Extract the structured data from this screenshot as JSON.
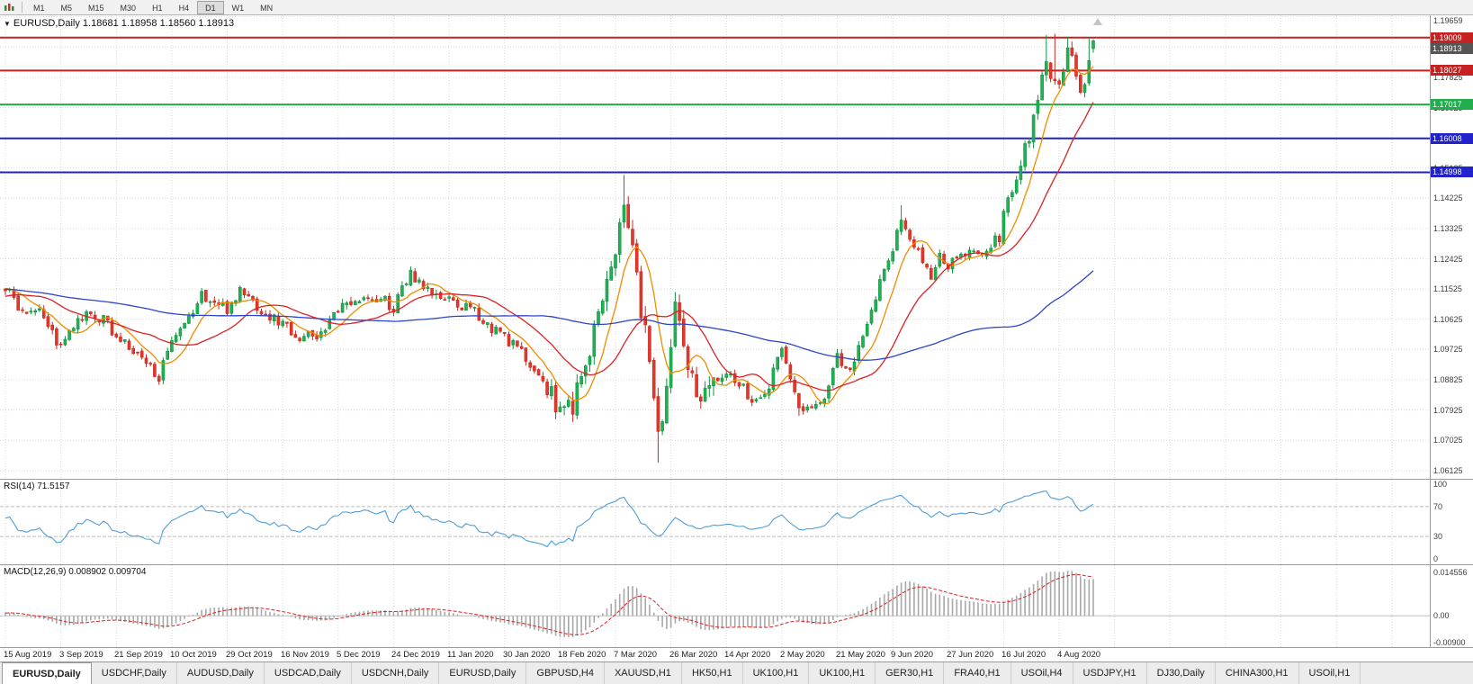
{
  "toolbar": {
    "timeframes": [
      "M1",
      "M5",
      "M15",
      "M30",
      "H1",
      "H4",
      "D1",
      "W1",
      "MN"
    ],
    "active_timeframe": "D1"
  },
  "chart": {
    "header_text": "EURUSD,Daily 1.18681 1.18958 1.18560 1.18913",
    "dropdown_glyph": "▼"
  },
  "price_axis": {
    "top_label": "1.19659",
    "gridlines": [
      "1.18725",
      "1.17825",
      "1.16925",
      "1.16025",
      "1.15125",
      "1.14225",
      "1.13325",
      "1.12425",
      "1.11525",
      "1.10625",
      "1.09725",
      "1.08825",
      "1.07925",
      "1.07025",
      "1.06125"
    ],
    "badges": [
      {
        "value": "1.19009",
        "price": 1.19009,
        "color": "#c62120"
      },
      {
        "value": "1.18913",
        "price": 1.18913,
        "color": "#555555"
      },
      {
        "value": "1.18027",
        "price": 1.18027,
        "color": "#c62120"
      },
      {
        "value": "1.17017",
        "price": 1.17017,
        "color": "#1fae4b"
      },
      {
        "value": "1.16008",
        "price": 1.16008,
        "color": "#2222cc"
      },
      {
        "value": "1.14998",
        "price": 1.14998,
        "color": "#2222cc"
      }
    ]
  },
  "levels": [
    {
      "price": 1.19009,
      "color": "#c62120",
      "width": 2
    },
    {
      "price": 1.18027,
      "color": "#c62120",
      "width": 2
    },
    {
      "price": 1.17017,
      "color": "#1fae4b",
      "width": 2
    },
    {
      "price": 1.16008,
      "color": "#2222cc",
      "width": 2
    },
    {
      "price": 1.14998,
      "color": "#2222cc",
      "width": 2
    }
  ],
  "rsi": {
    "label": "RSI(14) 71.5157",
    "period": 14,
    "current": 71.5157,
    "axis_labels": [
      {
        "text": "100",
        "value": 100
      },
      {
        "text": "70",
        "value": 70
      },
      {
        "text": "30",
        "value": 30
      },
      {
        "text": "0",
        "value": 0
      }
    ],
    "level_lines": [
      70,
      30
    ],
    "line_color": "#4f9fd8"
  },
  "macd": {
    "label": "MACD(12,26,9) 0.008902 0.009704",
    "values": [
      0.008902,
      0.009704
    ],
    "axis_labels": [
      {
        "text": "0.014556",
        "value": 0.014556
      },
      {
        "text": "0.00",
        "value": 0
      },
      {
        "text": "-0.00900",
        "value": -0.009
      }
    ],
    "range": {
      "max": 0.014556,
      "min": -0.009
    },
    "histogram_color": "#a8a8a8",
    "signal_color": "#e02020"
  },
  "x_axis": {
    "dates": [
      "15 Aug 2019",
      "3 Sep 2019",
      "21 Sep 2019",
      "10 Oct 2019",
      "29 Oct 2019",
      "16 Nov 2019",
      "5 Dec 2019",
      "24 Dec 2019",
      "11 Jan 2020",
      "30 Jan 2020",
      "18 Feb 2020",
      "7 Mar 2020",
      "26 Mar 2020",
      "14 Apr 2020",
      "2 May 2020",
      "21 May 2020",
      "9 Jun 2020",
      "27 Jun 2020",
      "16 Jul 2020",
      "4 Aug 2020"
    ],
    "candles_per_tick": 13
  },
  "tabs": [
    "EURUSD,Daily",
    "USDCHF,Daily",
    "AUDUSD,Daily",
    "USDCAD,Daily",
    "USDCNH,Daily",
    "EURUSD,Daily",
    "GBPUSD,H4",
    "XAUUSD,H1",
    "HK50,H1",
    "UK100,H1",
    "UK100,H1",
    "GER30,H1",
    "FRA40,H1",
    "USOil,H4",
    "USDJPY,H1",
    "DJ30,Daily",
    "CHINA300,H1",
    "USOil,H1"
  ],
  "active_tab_index": 0,
  "chart_data": {
    "type": "candlestick",
    "symbol": "EURUSD",
    "timeframe": "Daily",
    "current_ohlc": {
      "open": 1.18681,
      "high": 1.18958,
      "low": 1.1856,
      "close": 1.18913
    },
    "price_range": {
      "top": 1.1967,
      "bottom": 1.0588
    },
    "candle_count": 256,
    "seed": 9,
    "up_color": {
      "fill": "#1fb254",
      "stroke": "#12913f"
    },
    "down_color": {
      "fill": "#e3372c",
      "stroke": "#c6281e"
    },
    "prehistory_keypoints": [
      [
        -100,
        1.123
      ],
      [
        -70,
        1.12
      ],
      [
        -40,
        1.112
      ],
      [
        -20,
        1.108
      ],
      [
        -8,
        1.115
      ],
      [
        -1,
        1.116
      ]
    ],
    "close_keypoints": [
      [
        0,
        1.1155
      ],
      [
        4,
        1.109
      ],
      [
        8,
        1.1105
      ],
      [
        11,
        1.102
      ],
      [
        13,
        1.0975
      ],
      [
        16,
        1.104
      ],
      [
        19,
        1.107
      ],
      [
        23,
        1.106
      ],
      [
        26,
        1.1015
      ],
      [
        29,
        1.0975
      ],
      [
        33,
        1.093
      ],
      [
        36,
        1.0895
      ],
      [
        39,
        1.0985
      ],
      [
        43,
        1.106
      ],
      [
        46,
        1.1135
      ],
      [
        49,
        1.111
      ],
      [
        52,
        1.1095
      ],
      [
        55,
        1.115
      ],
      [
        58,
        1.1115
      ],
      [
        61,
        1.107
      ],
      [
        65,
        1.1055
      ],
      [
        69,
        1.101
      ],
      [
        73,
        1.1015
      ],
      [
        76,
        1.105
      ],
      [
        78,
        1.1085
      ],
      [
        82,
        1.113
      ],
      [
        86,
        1.1115
      ],
      [
        89,
        1.112
      ],
      [
        91,
        1.109
      ],
      [
        93,
        1.115
      ],
      [
        95,
        1.12
      ],
      [
        98,
        1.1165
      ],
      [
        101,
        1.113
      ],
      [
        104,
        1.1115
      ],
      [
        108,
        1.1095
      ],
      [
        111,
        1.1075
      ],
      [
        114,
        1.1035
      ],
      [
        117,
        1.101
      ],
      [
        120,
        1.0975
      ],
      [
        123,
        1.0935
      ],
      [
        126,
        1.087
      ],
      [
        129,
        1.08
      ],
      [
        131,
        1.079
      ],
      [
        133,
        1.0815
      ],
      [
        135,
        1.089
      ],
      [
        137,
        1.0965
      ],
      [
        138,
        1.103
      ],
      [
        140,
        1.11
      ],
      [
        142,
        1.12
      ],
      [
        144,
        1.136
      ],
      [
        145,
        1.144
      ],
      [
        146,
        1.135
      ],
      [
        147,
        1.127
      ],
      [
        148,
        1.118
      ],
      [
        149,
        1.1105
      ],
      [
        150,
        1.103
      ],
      [
        151,
        1.095
      ],
      [
        152,
        1.082
      ],
      [
        153,
        1.069
      ],
      [
        154,
        1.072
      ],
      [
        155,
        1.083
      ],
      [
        156,
        1.099
      ],
      [
        157,
        1.109
      ],
      [
        158,
        1.106
      ],
      [
        159,
        1.1
      ],
      [
        160,
        1.095
      ],
      [
        161,
        1.09
      ],
      [
        162,
        1.085
      ],
      [
        163,
        1.08
      ],
      [
        165,
        1.0855
      ],
      [
        167,
        1.088
      ],
      [
        169,
        1.091
      ],
      [
        171,
        1.088
      ],
      [
        173,
        1.0855
      ],
      [
        175,
        1.082
      ],
      [
        177,
        1.0835
      ],
      [
        179,
        1.087
      ],
      [
        181,
        1.095
      ],
      [
        182,
        1.0975
      ],
      [
        183,
        1.093
      ],
      [
        184,
        1.088
      ],
      [
        186,
        1.0795
      ],
      [
        188,
        1.0805
      ],
      [
        190,
        1.081
      ],
      [
        192,
        1.0815
      ],
      [
        194,
        1.0905
      ],
      [
        195,
        1.0945
      ],
      [
        197,
        1.0905
      ],
      [
        199,
        1.0945
      ],
      [
        201,
        1.1
      ],
      [
        203,
        1.11
      ],
      [
        205,
        1.117
      ],
      [
        207,
        1.1235
      ],
      [
        209,
        1.1325
      ],
      [
        210,
        1.137
      ],
      [
        212,
        1.13
      ],
      [
        214,
        1.1255
      ],
      [
        216,
        1.122
      ],
      [
        217,
        1.1195
      ],
      [
        219,
        1.1255
      ],
      [
        221,
        1.122
      ],
      [
        223,
        1.124
      ],
      [
        225,
        1.125
      ],
      [
        227,
        1.127
      ],
      [
        229,
        1.1255
      ],
      [
        231,
        1.129
      ],
      [
        233,
        1.13
      ],
      [
        234,
        1.1385
      ],
      [
        236,
        1.144
      ],
      [
        238,
        1.1525
      ],
      [
        240,
        1.16
      ],
      [
        242,
        1.172
      ],
      [
        244,
        1.1845
      ],
      [
        245,
        1.178
      ],
      [
        247,
        1.1765
      ],
      [
        249,
        1.1865
      ],
      [
        251,
        1.1795
      ],
      [
        252,
        1.1745
      ],
      [
        254,
        1.1815
      ],
      [
        255,
        1.18913
      ]
    ],
    "spike_highs": [
      [
        145,
        1.1492
      ],
      [
        210,
        1.1402
      ],
      [
        244,
        1.1908
      ],
      [
        246,
        1.1912
      ],
      [
        249,
        1.1903
      ],
      [
        254,
        1.19
      ]
    ],
    "spike_lows": [
      [
        131,
        1.0777
      ],
      [
        153,
        1.0636
      ],
      [
        186,
        1.0775
      ]
    ],
    "volatility_zones": [
      {
        "from": -100,
        "to": 127,
        "amp": 0.0017
      },
      {
        "from": 128,
        "to": 166,
        "amp": 0.004
      },
      {
        "from": 167,
        "to": 235,
        "amp": 0.0017
      },
      {
        "from": 236,
        "to": 255,
        "amp": 0.0024
      }
    ],
    "moving_averages": [
      {
        "period": 8,
        "color": "#f08c00"
      },
      {
        "period": 21,
        "color": "#dd2222"
      },
      {
        "period": 90,
        "color": "#2b44cc"
      }
    ]
  }
}
